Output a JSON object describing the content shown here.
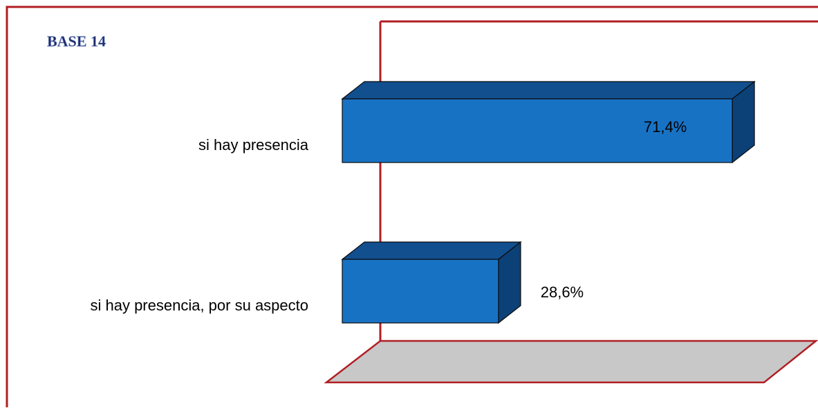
{
  "base_label": "BASE 14",
  "colors": {
    "frame": "#b01e23",
    "bar_front": "#1872c4",
    "bar_top": "#124f8f",
    "bar_side": "#0c4177",
    "floor": "#c8c8c8",
    "base_text": "#1f2d6b"
  },
  "chart_data": {
    "type": "bar",
    "orientation": "horizontal",
    "three_d": true,
    "categories": [
      "si hay presencia",
      "si hay presencia, por su aspecto"
    ],
    "values": [
      71.4,
      28.6
    ],
    "value_labels": [
      "71,4%",
      "28,6%"
    ],
    "xlim": [
      0,
      100
    ],
    "grid": false,
    "legend": "none"
  }
}
